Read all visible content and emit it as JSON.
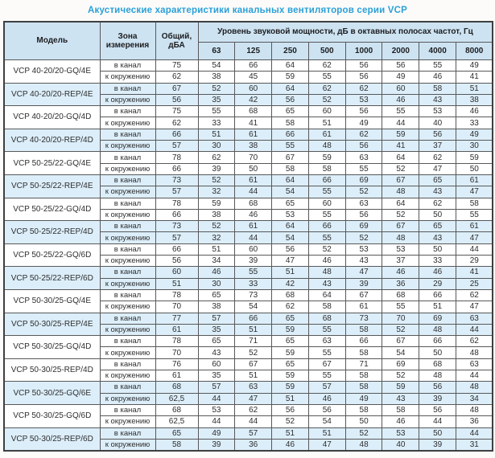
{
  "title": "Акустические характеристики канальных вентиляторов  серии VCP",
  "colors": {
    "title_blue": "#2aa0d8",
    "header_background": "#cde3f2",
    "shaded_row_background": "#dceef9",
    "border": "#58585a"
  },
  "table": {
    "columns": {
      "model": "Модель",
      "zone": "Зона измерения",
      "total": "Общий, дБА",
      "spl_group": "Уровень звуковой мощности, дБ в октавных полосах частот, Гц"
    },
    "frequencies": [
      "63",
      "125",
      "250",
      "500",
      "1000",
      "2000",
      "4000",
      "8000"
    ],
    "groups": [
      {
        "model": "VCP 40-20/20-GQ/4E",
        "shaded": false,
        "rows": [
          {
            "zone": "в канал",
            "total": "75",
            "values": [
              54,
              66,
              64,
              62,
              56,
              56,
              55,
              49
            ]
          },
          {
            "zone": "к окружению",
            "total": "62",
            "values": [
              38,
              45,
              59,
              55,
              56,
              49,
              46,
              41
            ]
          }
        ]
      },
      {
        "model": "VCP 40-20/20-REP/4E",
        "shaded": true,
        "rows": [
          {
            "zone": "в канал",
            "total": "67",
            "values": [
              52,
              60,
              64,
              62,
              62,
              60,
              58,
              51
            ]
          },
          {
            "zone": "к окружению",
            "total": "56",
            "values": [
              35,
              42,
              56,
              52,
              53,
              46,
              43,
              38
            ]
          }
        ]
      },
      {
        "model": "VCP 40-20/20-GQ/4D",
        "shaded": false,
        "rows": [
          {
            "zone": "в канал",
            "total": "75",
            "values": [
              55,
              68,
              65,
              60,
              56,
              55,
              53,
              46
            ]
          },
          {
            "zone": "к окружению",
            "total": "62",
            "values": [
              33,
              41,
              58,
              51,
              49,
              44,
              40,
              33
            ]
          }
        ]
      },
      {
        "model": "VCP 40-20/20-REP/4D",
        "shaded": true,
        "rows": [
          {
            "zone": "в канал",
            "total": "66",
            "values": [
              51,
              61,
              66,
              61,
              62,
              59,
              56,
              49
            ]
          },
          {
            "zone": "к окружению",
            "total": "57",
            "values": [
              30,
              38,
              55,
              48,
              56,
              41,
              37,
              30
            ]
          }
        ]
      },
      {
        "model": "VCP 50-25/22-GQ/4E",
        "shaded": false,
        "rows": [
          {
            "zone": "в канал",
            "total": "78",
            "values": [
              62,
              70,
              67,
              59,
              63,
              64,
              62,
              59
            ]
          },
          {
            "zone": "к окружению",
            "total": "66",
            "values": [
              39,
              50,
              58,
              58,
              55,
              52,
              47,
              50
            ]
          }
        ]
      },
      {
        "model": "VCP 50-25/22-REP/4E",
        "shaded": true,
        "rows": [
          {
            "zone": "в канал",
            "total": "73",
            "values": [
              52,
              61,
              64,
              66,
              69,
              67,
              65,
              61
            ]
          },
          {
            "zone": "к окружению",
            "total": "57",
            "values": [
              32,
              44,
              54,
              55,
              52,
              48,
              43,
              47
            ]
          }
        ]
      },
      {
        "model": "VCP 50-25/22-GQ/4D",
        "shaded": false,
        "rows": [
          {
            "zone": "в канал",
            "total": "78",
            "values": [
              59,
              68,
              65,
              60,
              63,
              64,
              62,
              58
            ]
          },
          {
            "zone": "к окружению",
            "total": "66",
            "values": [
              38,
              46,
              53,
              55,
              56,
              52,
              50,
              55
            ]
          }
        ]
      },
      {
        "model": "VCP 50-25/22-REP/4D",
        "shaded": true,
        "rows": [
          {
            "zone": "в канал",
            "total": "73",
            "values": [
              52,
              61,
              64,
              66,
              69,
              67,
              65,
              61
            ]
          },
          {
            "zone": "к окружению",
            "total": "57",
            "values": [
              32,
              44,
              54,
              55,
              52,
              48,
              43,
              47
            ]
          }
        ]
      },
      {
        "model": "VCP 50-25/22-GQ/6D",
        "shaded": false,
        "rows": [
          {
            "zone": "в канал",
            "total": "66",
            "values": [
              51,
              60,
              56,
              52,
              53,
              53,
              50,
              44
            ]
          },
          {
            "zone": "к окружению",
            "total": "56",
            "values": [
              34,
              39,
              47,
              46,
              43,
              37,
              33,
              29
            ]
          }
        ]
      },
      {
        "model": "VCP 50-25/22-REP/6D",
        "shaded": true,
        "rows": [
          {
            "zone": "в канал",
            "total": "60",
            "values": [
              46,
              55,
              51,
              48,
              47,
              46,
              46,
              41
            ]
          },
          {
            "zone": "к окружению",
            "total": "51",
            "values": [
              30,
              33,
              42,
              43,
              39,
              36,
              29,
              25
            ]
          }
        ]
      },
      {
        "model": "VCP 50-30/25-GQ/4E",
        "shaded": false,
        "rows": [
          {
            "zone": "в канал",
            "total": "78",
            "values": [
              65,
              73,
              68,
              64,
              67,
              68,
              66,
              62
            ]
          },
          {
            "zone": "к окружению",
            "total": "70",
            "values": [
              38,
              54,
              62,
              58,
              61,
              55,
              51,
              47
            ]
          }
        ]
      },
      {
        "model": "VCP 50-30/25-REP/4E",
        "shaded": true,
        "rows": [
          {
            "zone": "в канал",
            "total": "77",
            "values": [
              57,
              66,
              65,
              68,
              73,
              70,
              69,
              63
            ]
          },
          {
            "zone": "к окружению",
            "total": "61",
            "values": [
              35,
              51,
              59,
              55,
              58,
              52,
              48,
              44
            ]
          }
        ]
      },
      {
        "model": "VCP 50-30/25-GQ/4D",
        "shaded": false,
        "rows": [
          {
            "zone": "в канал",
            "total": "78",
            "values": [
              65,
              71,
              65,
              63,
              66,
              67,
              66,
              62
            ]
          },
          {
            "zone": "к окружению",
            "total": "70",
            "values": [
              43,
              52,
              59,
              55,
              58,
              54,
              50,
              48
            ]
          }
        ]
      },
      {
        "model": "VCP 50-30/25-REP/4D",
        "shaded": false,
        "rows": [
          {
            "zone": "в канал",
            "total": "76",
            "values": [
              60,
              67,
              65,
              67,
              71,
              69,
              68,
              63
            ]
          },
          {
            "zone": "к окружению",
            "total": "61",
            "values": [
              35,
              51,
              59,
              55,
              58,
              52,
              48,
              44
            ]
          }
        ]
      },
      {
        "model": "VCP 50-30/25-GQ/6E",
        "shaded": true,
        "rows": [
          {
            "zone": "в канал",
            "total": "68",
            "values": [
              57,
              63,
              59,
              57,
              58,
              59,
              56,
              48
            ]
          },
          {
            "zone": "к окружению",
            "total": "62,5",
            "values": [
              44,
              47,
              51,
              46,
              49,
              43,
              39,
              34
            ]
          }
        ]
      },
      {
        "model": "VCP 50-30/25-GQ/6D",
        "shaded": false,
        "rows": [
          {
            "zone": "в канал",
            "total": "68",
            "values": [
              53,
              62,
              56,
              56,
              58,
              58,
              56,
              48
            ]
          },
          {
            "zone": "к окружению",
            "total": "62,5",
            "values": [
              44,
              44,
              52,
              54,
              50,
              46,
              44,
              36
            ]
          }
        ]
      },
      {
        "model": "VCP 50-30/25-REP/6D",
        "shaded": true,
        "rows": [
          {
            "zone": "в канал",
            "total": "65",
            "values": [
              49,
              57,
              51,
              51,
              52,
              53,
              50,
              44
            ]
          },
          {
            "zone": "к окружению",
            "total": "58",
            "values": [
              39,
              36,
              46,
              47,
              48,
              40,
              39,
              31
            ]
          }
        ]
      }
    ]
  }
}
